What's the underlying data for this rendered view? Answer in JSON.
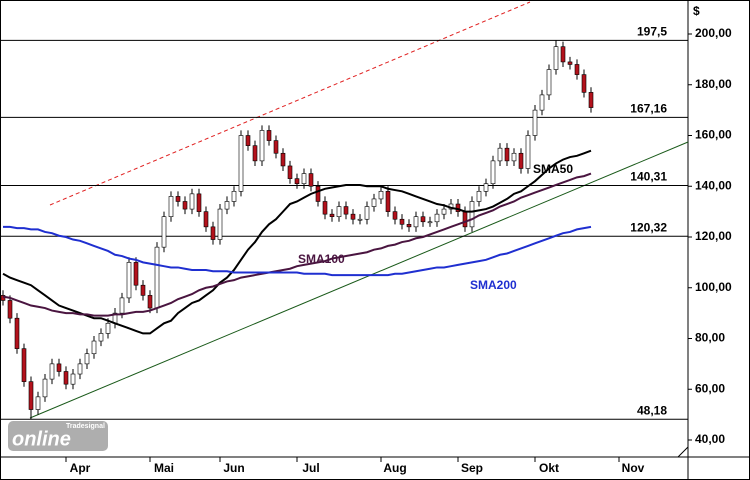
{
  "chart_data": {
    "type": "candlestick",
    "y_unit": "$",
    "categories": [
      null,
      null,
      null,
      null,
      null,
      null,
      null,
      null,
      null,
      "Apr",
      null,
      null,
      null,
      null,
      null,
      null,
      null,
      null,
      null,
      null,
      null,
      "Mai",
      null,
      null,
      null,
      null,
      null,
      null,
      null,
      null,
      null,
      "Jun",
      null,
      null,
      null,
      null,
      null,
      null,
      null,
      null,
      null,
      null,
      "Jul",
      null,
      null,
      null,
      null,
      null,
      null,
      null,
      null,
      null,
      null,
      null,
      "Aug",
      null,
      null,
      null,
      null,
      null,
      null,
      null,
      null,
      null,
      null,
      "Sep",
      null,
      null,
      null,
      null,
      null,
      null,
      null,
      null,
      null,
      null,
      "Okt",
      null,
      null,
      null,
      null,
      null,
      null,
      null,
      null,
      null,
      null,
      null,
      "Nov",
      null,
      null,
      null,
      null,
      null,
      null,
      null,
      null,
      null
    ],
    "open": [
      97,
      95,
      88,
      76,
      63,
      52,
      57,
      64,
      70,
      67,
      62,
      66,
      70,
      74,
      79,
      82,
      86,
      90,
      96,
      110,
      101,
      97,
      92,
      116,
      128,
      136,
      134,
      131,
      137,
      130,
      124,
      119,
      131,
      134,
      138,
      160,
      156,
      150,
      162,
      158,
      153,
      148,
      143,
      141,
      145,
      140,
      134,
      129,
      128,
      132,
      129,
      127,
      127,
      132,
      135,
      138,
      130,
      127,
      125,
      124,
      128,
      126,
      126,
      129,
      131,
      133,
      130,
      124,
      134,
      138,
      141,
      150,
      155,
      150,
      153,
      147,
      160,
      170,
      176,
      186,
      195,
      189,
      188,
      184,
      177,
      null,
      null,
      null,
      null,
      null,
      null,
      null,
      null,
      null,
      null,
      null,
      null,
      null
    ],
    "high": [
      99,
      97,
      90,
      78,
      65,
      59,
      66,
      72,
      72,
      69,
      68,
      72,
      76,
      81,
      84,
      88,
      92,
      98,
      112,
      112,
      103,
      99,
      118,
      130,
      138,
      138,
      136,
      139,
      139,
      132,
      126,
      133,
      136,
      140,
      162,
      162,
      158,
      164,
      164,
      160,
      155,
      150,
      145,
      147,
      147,
      142,
      136,
      131,
      134,
      134,
      131,
      129,
      134,
      137,
      140,
      140,
      132,
      129,
      127,
      130,
      130,
      128,
      131,
      133,
      135,
      135,
      132,
      136,
      140,
      143,
      152,
      157,
      157,
      155,
      155,
      162,
      172,
      178,
      188,
      197.5,
      197,
      191,
      190,
      186,
      179,
      null,
      null,
      null,
      null,
      null,
      null,
      null,
      null,
      null,
      null,
      null,
      null,
      null
    ],
    "low": [
      93,
      86,
      74,
      61,
      48.18,
      50,
      55,
      62,
      65,
      60,
      60,
      64,
      68,
      72,
      77,
      80,
      84,
      88,
      94,
      99,
      95,
      90,
      90,
      114,
      126,
      132,
      129,
      129,
      128,
      122,
      117,
      117,
      129,
      132,
      136,
      154,
      148,
      148,
      156,
      151,
      146,
      141,
      139,
      139,
      138,
      132,
      127,
      126,
      126,
      127,
      125,
      125,
      125,
      130,
      133,
      128,
      125,
      123,
      122,
      122,
      124,
      124,
      124,
      127,
      129,
      128,
      122,
      122,
      132,
      136,
      139,
      148,
      148,
      148,
      145,
      145,
      158,
      168,
      174,
      184,
      187,
      186,
      182,
      175,
      169,
      null,
      null,
      null,
      null,
      null,
      null,
      null,
      null,
      null,
      null,
      null,
      null,
      null
    ],
    "close": [
      95,
      88,
      76,
      63,
      52,
      57,
      64,
      70,
      67,
      62,
      66,
      70,
      74,
      79,
      82,
      86,
      90,
      96,
      110,
      101,
      97,
      92,
      116,
      128,
      136,
      134,
      131,
      137,
      130,
      124,
      119,
      131,
      134,
      138,
      160,
      156,
      150,
      162,
      158,
      153,
      148,
      143,
      141,
      145,
      140,
      134,
      129,
      128,
      132,
      129,
      127,
      127,
      132,
      135,
      138,
      130,
      127,
      125,
      124,
      128,
      126,
      126,
      129,
      131,
      133,
      130,
      124,
      134,
      138,
      141,
      150,
      155,
      150,
      153,
      147,
      160,
      170,
      176,
      186,
      195,
      189,
      188,
      184,
      177,
      171,
      null,
      null,
      null,
      null,
      null,
      null,
      null,
      null,
      null,
      null,
      null,
      null,
      null
    ],
    "up_color": "#ffffff",
    "down_color": "#b3121c",
    "series": [
      {
        "name": "SMA50",
        "color": "#000000",
        "values": [
          105.5,
          104,
          103,
          102,
          101,
          99,
          97,
          95,
          93,
          92,
          91,
          90,
          89,
          88,
          88,
          87,
          86,
          85,
          84,
          83,
          82,
          82,
          84,
          86,
          87,
          90,
          92,
          94,
          95,
          97,
          99,
          102,
          104,
          107,
          111,
          115,
          118,
          122,
          125,
          127,
          130,
          133,
          134,
          135.5,
          137,
          138,
          139,
          139.5,
          140,
          140.5,
          140.5,
          140.5,
          140,
          140,
          140,
          139,
          138.5,
          138,
          137,
          136,
          135,
          134,
          133,
          132.5,
          131.5,
          131,
          130,
          130,
          130.5,
          131,
          132,
          133.5,
          135,
          137,
          138,
          140,
          142,
          144.5,
          147,
          149,
          150.5,
          151.5,
          152,
          153,
          154,
          null,
          null,
          null,
          null,
          null,
          null,
          null,
          null,
          null,
          null,
          null,
          null,
          null
        ]
      },
      {
        "name": "SMA100",
        "color": "#4a1540",
        "values": [
          96.5,
          96,
          95,
          94,
          93,
          92.5,
          92,
          91,
          90.5,
          90,
          90,
          89.5,
          89.5,
          89,
          89,
          89,
          89.5,
          89.5,
          90,
          90.5,
          90.5,
          91,
          92,
          93,
          94,
          95.5,
          96.5,
          97.5,
          99,
          100,
          100.5,
          101.5,
          102.5,
          103,
          104,
          104.5,
          105,
          105.5,
          106,
          106.5,
          107,
          107.5,
          108.5,
          109,
          109.5,
          110,
          110.5,
          111.5,
          112,
          112.5,
          113,
          113.5,
          114,
          115,
          115.5,
          116.5,
          117,
          118,
          118.5,
          119.5,
          120,
          121,
          122,
          123,
          124,
          125,
          126,
          127,
          128.5,
          129.5,
          130.5,
          132,
          133,
          134,
          135.5,
          136.5,
          137.5,
          138.5,
          139.5,
          140.5,
          141.5,
          142.5,
          143.5,
          144,
          145,
          null,
          null,
          null,
          null,
          null,
          null,
          null,
          null,
          null,
          null,
          null,
          null,
          null
        ]
      },
      {
        "name": "SMA200",
        "color": "#1f2fd0",
        "values": [
          124,
          124,
          123.5,
          123.5,
          123,
          123,
          122,
          121.5,
          120.5,
          120,
          119,
          118.5,
          117.5,
          116.5,
          115.5,
          114.5,
          113,
          112.5,
          111.5,
          111,
          110,
          109.5,
          109,
          108.5,
          108,
          108,
          107.5,
          107,
          107,
          107,
          106.5,
          106.5,
          106.5,
          106,
          106,
          106,
          106,
          106,
          106,
          106,
          106,
          106,
          106,
          105.5,
          105.5,
          105.5,
          105.5,
          105,
          105,
          105,
          105,
          105,
          105,
          105,
          105,
          105,
          105.5,
          105.5,
          106,
          106.5,
          107,
          107.5,
          108,
          108,
          108.5,
          109,
          109.5,
          110,
          110.5,
          111,
          112,
          113,
          113.5,
          114.5,
          115.5,
          116.5,
          117.5,
          118.5,
          119.5,
          120.5,
          121.5,
          122,
          123,
          123.5,
          124,
          null,
          null,
          null,
          null,
          null,
          null,
          null,
          null,
          null,
          null,
          null,
          null,
          null
        ]
      }
    ],
    "levels": [
      {
        "value": 197.5,
        "label": "197,5"
      },
      {
        "value": 167.16,
        "label": "167,16"
      },
      {
        "value": 140.31,
        "label": "140,31"
      },
      {
        "value": 120.32,
        "label": "120,32"
      },
      {
        "value": 48.18,
        "label": "48,18"
      }
    ],
    "ylim": [
      33.3,
      213.4
    ],
    "yticks": [
      {
        "value": 40,
        "label": "40,00"
      },
      {
        "value": 60,
        "label": "60,00"
      },
      {
        "value": 80,
        "label": "80,00"
      },
      {
        "value": 100,
        "label": "100,00"
      },
      {
        "value": 120,
        "label": "120,00"
      },
      {
        "value": 140,
        "label": "140,00"
      },
      {
        "value": 160,
        "label": "160,00"
      },
      {
        "value": 180,
        "label": "180,00"
      },
      {
        "value": 200,
        "label": "200,00"
      }
    ],
    "grid": false,
    "logo": {
      "brand": "Tradesignal",
      "name": "online"
    }
  }
}
